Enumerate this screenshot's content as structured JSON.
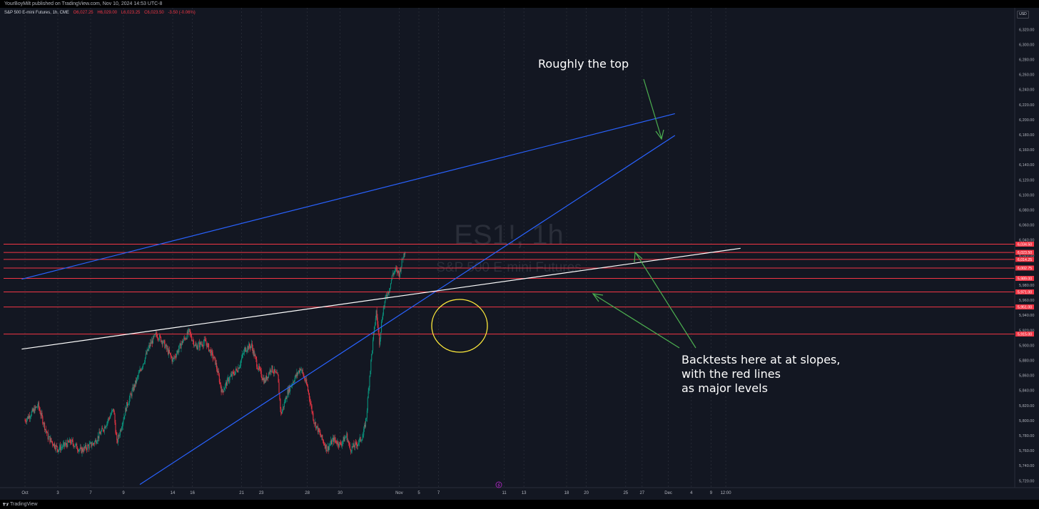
{
  "header": {
    "publisher": "YourBoyMilt published on TradingView.com, Nov 10, 2024 14:53 UTC-8"
  },
  "symbol_bar": {
    "name": "S&P 500 E-mini Futures, 1h, CME",
    "open": "O6,027.25",
    "high": "H6,029.00",
    "low": "L6,023.25",
    "close": "C6,023.50",
    "change": "-3.50 (-0.06%)"
  },
  "currency": "USD",
  "footer": {
    "brand": "TradingView"
  },
  "watermark": {
    "title": "ES1!, 1h",
    "subtitle": "S&P 500 E-mini Futures"
  },
  "colors": {
    "background": "#131722",
    "grid": "#2a2e39",
    "up_candle": "#089981",
    "down_candle": "#f23645",
    "level_line": "#f23645",
    "trend_blue": "#2962ff",
    "trend_white": "#ffffff",
    "annotation_arrow": "#4caf50",
    "circle": "#ffeb3b"
  },
  "chart_data": {
    "type": "candlestick",
    "title": "ES1!, 1h",
    "subtitle": "S&P 500 E-mini Futures",
    "x_ticks": [
      "Oct",
      "3",
      "7",
      "9",
      "14",
      "16",
      "21",
      "23",
      "28",
      "30",
      "Nov",
      "5",
      "7",
      "11",
      "13",
      "18",
      "20",
      "25",
      "27",
      "Dec",
      "4",
      "9",
      "12:00"
    ],
    "y_ticks": [
      "6,320.00",
      "6,300.00",
      "6,280.00",
      "6,260.00",
      "6,240.00",
      "6,220.00",
      "6,200.00",
      "6,180.00",
      "6,160.00",
      "6,140.00",
      "6,120.00",
      "6,100.00",
      "6,080.00",
      "6,060.00",
      "6,040.00",
      "6,020.00",
      "5,980.00",
      "5,960.00",
      "5,940.00",
      "5,920.00",
      "5,900.00",
      "5,880.00",
      "5,860.00",
      "5,840.00",
      "5,820.00",
      "5,800.00",
      "5,780.00",
      "5,760.00",
      "5,740.00",
      "5,720.00"
    ],
    "ylim": [
      5710,
      6340
    ],
    "price_path": [
      [
        0,
        5800
      ],
      [
        4,
        5820
      ],
      [
        7,
        5778
      ],
      [
        10,
        5762
      ],
      [
        14,
        5772
      ],
      [
        17,
        5760
      ],
      [
        21,
        5770
      ],
      [
        24,
        5790
      ],
      [
        27,
        5815
      ],
      [
        28,
        5770
      ],
      [
        31,
        5820
      ],
      [
        35,
        5865
      ],
      [
        38,
        5900
      ],
      [
        40,
        5915
      ],
      [
        42,
        5905
      ],
      [
        45,
        5880
      ],
      [
        48,
        5905
      ],
      [
        50,
        5918
      ],
      [
        52,
        5898
      ],
      [
        55,
        5905
      ],
      [
        58,
        5878
      ],
      [
        60,
        5838
      ],
      [
        62,
        5855
      ],
      [
        65,
        5870
      ],
      [
        67,
        5895
      ],
      [
        69,
        5900
      ],
      [
        71,
        5870
      ],
      [
        73,
        5852
      ],
      [
        75,
        5870
      ],
      [
        77,
        5858
      ],
      [
        78,
        5808
      ],
      [
        80,
        5838
      ],
      [
        82,
        5855
      ],
      [
        84,
        5870
      ],
      [
        86,
        5845
      ],
      [
        88,
        5800
      ],
      [
        90,
        5780
      ],
      [
        92,
        5762
      ],
      [
        94,
        5775
      ],
      [
        96,
        5768
      ],
      [
        98,
        5780
      ],
      [
        99,
        5762
      ],
      [
        101,
        5768
      ],
      [
        103,
        5780
      ],
      [
        104,
        5805
      ],
      [
        105,
        5860
      ],
      [
        106,
        5905
      ],
      [
        107,
        5945
      ],
      [
        108,
        5905
      ],
      [
        109,
        5945
      ],
      [
        110,
        5965
      ],
      [
        111,
        5975
      ],
      [
        112,
        5995
      ],
      [
        113,
        6000
      ],
      [
        114,
        5995
      ],
      [
        115,
        6015
      ],
      [
        116,
        6030
      ]
    ],
    "levels": [
      {
        "value": 6034.5,
        "label": "6,034.50"
      },
      {
        "value": 6023.5,
        "label": "6,023.50"
      },
      {
        "value": 6014.25,
        "label": "6,014.25"
      },
      {
        "value": 6002.75,
        "label": "6,002.75"
      },
      {
        "value": 5989.0,
        "label": "5,989.00"
      },
      {
        "value": 5971.0,
        "label": "5,971.00"
      },
      {
        "value": 5951.0,
        "label": "5,951.00"
      },
      {
        "value": 5915.0,
        "label": "5,915.00"
      }
    ],
    "trendlines": [
      {
        "name": "upper channel",
        "color": "blue",
        "from": [
          -1,
          5988
        ],
        "to": [
          198,
          6208
        ]
      },
      {
        "name": "lower channel",
        "color": "blue",
        "from": [
          35,
          5715
        ],
        "to": [
          198,
          6179
        ]
      },
      {
        "name": "white trendline",
        "color": "white",
        "from": [
          -1,
          5895
        ],
        "to": [
          218,
          6029
        ]
      }
    ],
    "annotations": [
      {
        "text": "Roughly the top"
      },
      {
        "text": "Backtests here at at slopes, with the red lines as major levels"
      }
    ]
  }
}
